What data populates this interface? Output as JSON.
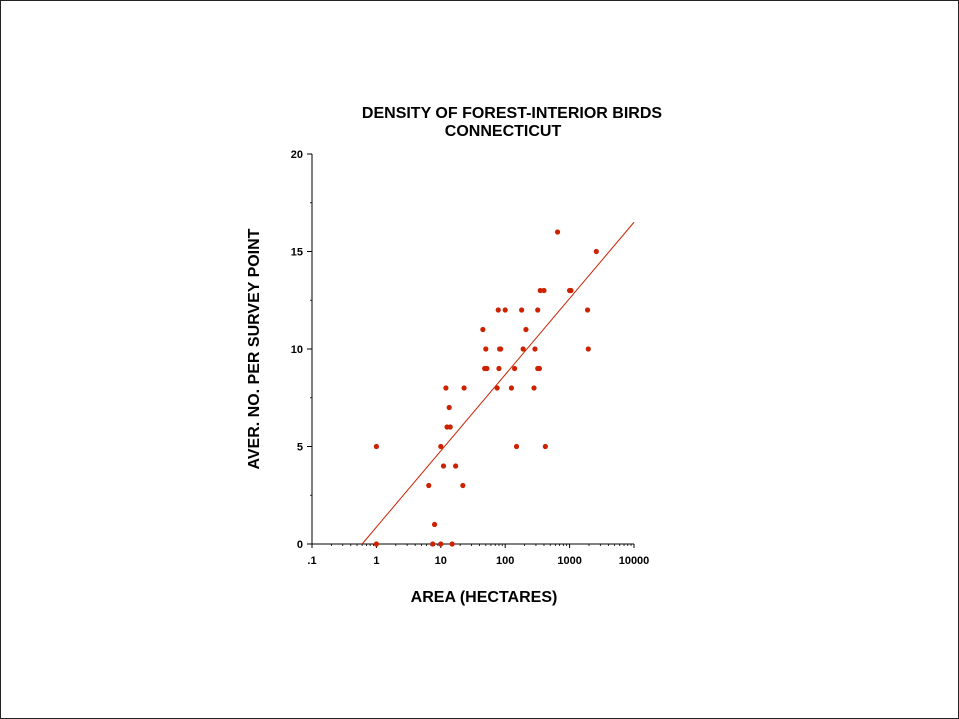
{
  "chart_data": {
    "type": "scatter",
    "title": "DENSITY OF FOREST-INTERIOR BIRDS",
    "subtitle": "CONNECTICUT",
    "xlabel": "AREA (HECTARES)",
    "ylabel": "AVER. NO. PER SURVEY POINT",
    "x_scale": "log",
    "xlim": [
      0.1,
      10000
    ],
    "ylim": [
      0,
      20
    ],
    "x_ticks": [
      0.1,
      1,
      10,
      100,
      1000,
      10000
    ],
    "x_tick_labels": [
      ".1",
      "1",
      "10",
      "100",
      "1000",
      "10000"
    ],
    "y_ticks": [
      0,
      5,
      10,
      15,
      20
    ],
    "y_tick_labels": [
      "0",
      "5",
      "10",
      "15",
      "20"
    ],
    "grid": false,
    "colors": {
      "points": "#cc2200",
      "trend_line": "#cc2200",
      "axes": "#000000"
    },
    "points": [
      [
        1,
        5
      ],
      [
        1,
        0
      ],
      [
        6.5,
        3
      ],
      [
        7.5,
        0
      ],
      [
        8,
        1
      ],
      [
        10,
        5
      ],
      [
        10,
        0
      ],
      [
        11,
        4
      ],
      [
        12,
        8
      ],
      [
        12.5,
        6
      ],
      [
        13.5,
        7
      ],
      [
        14,
        6
      ],
      [
        15,
        0
      ],
      [
        17,
        4
      ],
      [
        22,
        3
      ],
      [
        23,
        8
      ],
      [
        45,
        11
      ],
      [
        48,
        9
      ],
      [
        50,
        10
      ],
      [
        52,
        9
      ],
      [
        75,
        8
      ],
      [
        78,
        12
      ],
      [
        80,
        9
      ],
      [
        82,
        10
      ],
      [
        85,
        10
      ],
      [
        100,
        12
      ],
      [
        125,
        8
      ],
      [
        140,
        9
      ],
      [
        150,
        5
      ],
      [
        180,
        12
      ],
      [
        190,
        10
      ],
      [
        210,
        11
      ],
      [
        280,
        8
      ],
      [
        290,
        10
      ],
      [
        320,
        12
      ],
      [
        320,
        9
      ],
      [
        340,
        9
      ],
      [
        350,
        13
      ],
      [
        400,
        13
      ],
      [
        420,
        5
      ],
      [
        650,
        16
      ],
      [
        1000,
        13
      ],
      [
        1050,
        13
      ],
      [
        1900,
        12
      ],
      [
        1950,
        10
      ],
      [
        2600,
        15
      ]
    ],
    "trend_line": {
      "x1": 0.6,
      "y1": 0,
      "x2": 10000,
      "y2": 16.5
    }
  }
}
